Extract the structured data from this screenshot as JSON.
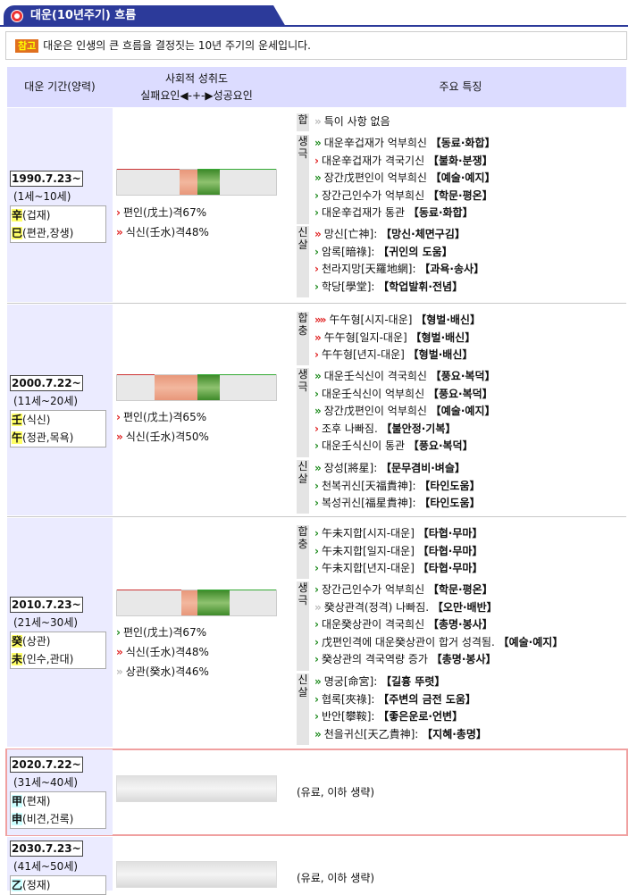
{
  "header": {
    "title": "대운(10년주기) 흐름"
  },
  "note": {
    "badge": "참고",
    "text": "대운은 인생의 큰 흐름을 결정짓는 10년 주기의 운세입니다."
  },
  "table_head": {
    "col1": "대운 기간(양력)",
    "col2_line1": "사회적 성취도",
    "col2_line2": "실패요인◀-+-▶성공요인",
    "col3": "주요 특징"
  },
  "rows": [
    {
      "date": "1990.7.23~",
      "age": "(1세~10세)",
      "gan_char": "辛",
      "gan_rest": "(겁재)",
      "ji_char": "巳",
      "ji_rest": "(편관,장생)",
      "kyeok": [
        {
          "arrow": "›",
          "text": "편인(戊土)격67%"
        },
        {
          "arrow": "»",
          "text": "식신(壬水)격48%"
        }
      ],
      "groups": [
        {
          "label": "합",
          "items": [
            {
              "arrow": "›",
              "text": "특이 사항 없음",
              "tag": ""
            }
          ]
        },
        {
          "label": "생극",
          "items": [
            {
              "arrow": "»",
              "text": "대운辛겁재가 억부희신 ",
              "tag": "【동료·화합】"
            },
            {
              "arrow": "›",
              "text": "대운辛겁재가 격국기신 ",
              "tag": "【불화·분쟁】"
            },
            {
              "arrow": "»",
              "text": "장간戊편인이 억부희신 ",
              "tag": "【예술·예지】"
            },
            {
              "arrow": "›",
              "text": "장간己인수가 억부희신 ",
              "tag": "【학문·평온】"
            },
            {
              "arrow": "›",
              "text": "대운辛겁재가 통관 ",
              "tag": "【동료·화합】"
            }
          ]
        },
        {
          "label": "신살",
          "items": [
            {
              "arrow": "»",
              "text": "망신[亡神]: ",
              "tag": "【망신·체면구김】"
            },
            {
              "arrow": "›",
              "text": "암록[暗祿]: ",
              "tag": "【귀인의 도움】"
            },
            {
              "arrow": "›",
              "text": "천라지망[天羅地網]: ",
              "tag": "【과욕·송사】"
            },
            {
              "arrow": "›",
              "text": "학당[學堂]: ",
              "tag": "【학업발휘·전념】"
            }
          ]
        }
      ]
    },
    {
      "date": "2000.7.22~",
      "age": "(11세~20세)",
      "gan_char": "壬",
      "gan_rest": "(식신)",
      "ji_char": "午",
      "ji_rest": "(정관,목욕)",
      "kyeok": [
        {
          "arrow": "›",
          "text": "편인(戊土)격65%"
        },
        {
          "arrow": "»",
          "text": "식신(壬水)격50%"
        }
      ],
      "groups": [
        {
          "label": "합충",
          "items": [
            {
              "arrow": "»»",
              "text": "午午형[시지-대운] ",
              "tag": "【형벌·배신】"
            },
            {
              "arrow": "»",
              "text": "午午형[일지-대운] ",
              "tag": "【형벌·배신】"
            },
            {
              "arrow": "›",
              "text": "午午형[년지-대운] ",
              "tag": "【형벌·배신】"
            }
          ]
        },
        {
          "label": "생극",
          "items": [
            {
              "arrow": "»",
              "text": "대운壬식신이 격국희신 ",
              "tag": "【풍요·복덕】"
            },
            {
              "arrow": "›",
              "text": "대운壬식신이 억부희신 ",
              "tag": "【풍요·복덕】"
            },
            {
              "arrow": "»",
              "text": "장간戊편인이 억부희신 ",
              "tag": "【예술·예지】"
            },
            {
              "arrow": "›",
              "text": "조후 나빠짐. ",
              "tag": "【불안정·기복】"
            },
            {
              "arrow": "›",
              "text": "대운壬식신이 통관 ",
              "tag": "【풍요·복덕】"
            }
          ]
        },
        {
          "label": "신살",
          "items": [
            {
              "arrow": "»",
              "text": "장성[將星]: ",
              "tag": "【문무겸비·벼슬】"
            },
            {
              "arrow": "›",
              "text": "천복귀신[天福貴神]: ",
              "tag": "【타인도움】"
            },
            {
              "arrow": "›",
              "text": "복성귀신[福星貴神]: ",
              "tag": "【타인도움】"
            }
          ]
        }
      ]
    },
    {
      "date": "2010.7.23~",
      "age": "(21세~30세)",
      "gan_char": "癸",
      "gan_rest": "(상관)",
      "ji_char": "未",
      "ji_rest": "(인수,관대)",
      "kyeok": [
        {
          "arrow": "›",
          "text": "편인(戊土)격67%"
        },
        {
          "arrow": "»",
          "text": "식신(壬水)격48%"
        },
        {
          "arrow": "»",
          "text": "상관(癸水)격46%"
        }
      ],
      "groups": [
        {
          "label": "합충",
          "items": [
            {
              "arrow": "›",
              "text": "午未지합[시지-대운] ",
              "tag": "【타협·무마】"
            },
            {
              "arrow": "›",
              "text": "午未지합[일지-대운] ",
              "tag": "【타협·무마】"
            },
            {
              "arrow": "›",
              "text": "午未지합[년지-대운] ",
              "tag": "【타협·무마】"
            }
          ]
        },
        {
          "label": "생극",
          "items": [
            {
              "arrow": "›",
              "text": "장간己인수가 억부희신 ",
              "tag": "【학문·평온】"
            },
            {
              "arrow": "»",
              "text": "癸상관격(정격) 나빠짐. ",
              "tag": "【오만·배반】"
            },
            {
              "arrow": "›",
              "text": "대운癸상관이 격국희신 ",
              "tag": "【총명·봉사】"
            },
            {
              "arrow": "›",
              "text": "戊편인격에 대운癸상관이 합거 성격됨. ",
              "tag": "【예술·예지】"
            },
            {
              "arrow": "›",
              "text": "癸상관의 격국역량 증가 ",
              "tag": "【총명·봉사】"
            }
          ]
        },
        {
          "label": "신살",
          "items": [
            {
              "arrow": "»",
              "text": "명궁[命宮]: ",
              "tag": "【길흉 뚜렷】"
            },
            {
              "arrow": "›",
              "text": "협록[夾祿]: ",
              "tag": "【주변의 금전 도움】"
            },
            {
              "arrow": "›",
              "text": "반안[攀鞍]: ",
              "tag": "【좋은운로·언변】"
            },
            {
              "arrow": "»",
              "text": "천을귀신[天乙貴神]: ",
              "tag": "【지혜·총명】"
            }
          ]
        }
      ]
    },
    {
      "date": "2020.7.22~",
      "age": "(31세~40세)",
      "gan_char": "甲",
      "gan_rest": "(편재)",
      "ji_char": "申",
      "ji_rest": "(비견,건록)",
      "text": "(유료, 이하 생략)"
    },
    {
      "date": "2030.7.23~",
      "age": "(41세~50세)",
      "gan_char": "乙",
      "gan_rest": "(정재)",
      "text": "(유료, 이하 생략)"
    }
  ]
}
